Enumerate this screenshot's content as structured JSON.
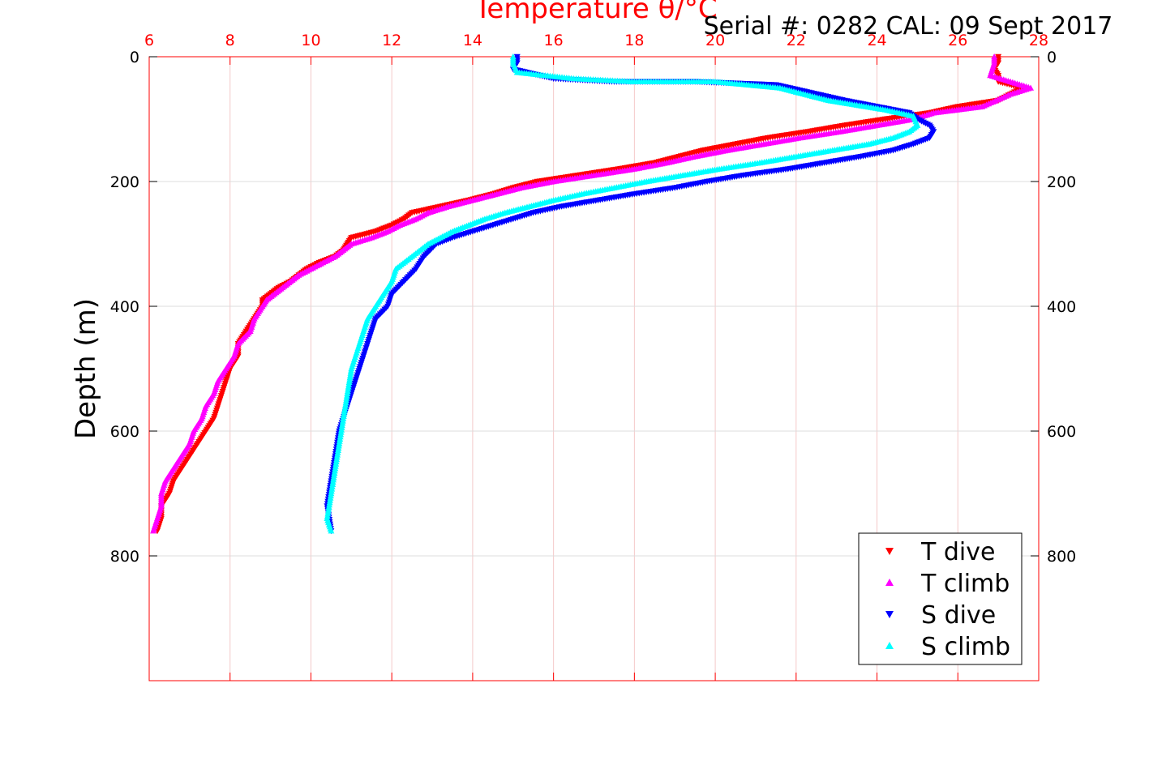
{
  "figure": {
    "title": "Temperature θ/°C",
    "annotation": "Serial #: 0282  CAL: 09 Sept 2017"
  },
  "chart_data": {
    "type": "scatter",
    "title": "Temperature θ/°C",
    "xlabel": "Temperature θ/°C",
    "ylabel": "Depth (m)",
    "xlim": [
      6,
      28
    ],
    "ylim": [
      1000,
      0
    ],
    "x_ticks": [
      "6",
      "8",
      "10",
      "12",
      "14",
      "16",
      "18",
      "20",
      "22",
      "24",
      "26",
      "28"
    ],
    "y_ticks": [
      "0",
      "200",
      "400",
      "600",
      "800"
    ],
    "y_reversed": true,
    "grid": true,
    "legend_position": "bottom-right",
    "series": [
      {
        "name": "T dive",
        "color": "#ff0000",
        "marker": "triangle-down",
        "x": [
          27.0,
          27.0,
          26.9,
          27.0,
          27.0,
          27.6,
          27.0,
          26.0,
          25.3,
          24.2,
          23.2,
          22.3,
          21.3,
          20.5,
          19.7,
          19.1,
          18.5,
          17.6,
          16.6,
          15.6,
          15.0,
          14.5,
          13.9,
          13.2,
          12.5,
          12.3,
          12.0,
          11.6,
          11.0,
          10.9,
          10.8,
          10.6,
          10.2,
          9.9,
          9.7,
          9.5,
          9.2,
          9.0,
          8.8,
          8.8,
          8.6,
          8.4,
          8.2,
          8.2,
          8.0,
          7.9,
          7.8,
          7.7,
          7.6,
          7.4,
          7.2,
          7.0,
          6.8,
          6.6,
          6.5,
          6.4,
          6.3,
          6.3,
          6.2
        ],
        "y": [
          0,
          10,
          20,
          30,
          40,
          50,
          70,
          80,
          90,
          100,
          110,
          120,
          130,
          140,
          150,
          160,
          170,
          180,
          190,
          200,
          210,
          220,
          230,
          240,
          250,
          260,
          270,
          280,
          290,
          300,
          310,
          320,
          330,
          340,
          350,
          360,
          370,
          380,
          390,
          400,
          420,
          440,
          460,
          480,
          500,
          520,
          540,
          560,
          580,
          600,
          620,
          640,
          660,
          680,
          700,
          710,
          720,
          740,
          760
        ]
      },
      {
        "name": "T climb",
        "color": "#ff00ff",
        "marker": "triangle-up",
        "x": [
          26.9,
          26.9,
          26.8,
          27.3,
          27.8,
          27.3,
          26.6,
          25.4,
          24.9,
          24.0,
          23.1,
          22.1,
          21.2,
          20.3,
          19.5,
          18.8,
          18.0,
          17.0,
          16.0,
          15.2,
          14.6,
          14.0,
          13.4,
          12.9,
          12.6,
          12.2,
          11.9,
          11.5,
          11.0,
          10.8,
          10.6,
          10.3,
          10.0,
          9.7,
          9.5,
          9.3,
          9.1,
          8.9,
          8.8,
          8.6,
          8.5,
          8.2,
          8.1,
          7.9,
          7.7,
          7.6,
          7.4,
          7.3,
          7.1,
          7.0,
          6.8,
          6.6,
          6.4,
          6.3,
          6.3,
          6.2,
          6.1
        ],
        "y": [
          0,
          10,
          30,
          40,
          50,
          60,
          80,
          90,
          100,
          110,
          120,
          130,
          140,
          150,
          160,
          170,
          180,
          190,
          200,
          210,
          220,
          230,
          240,
          250,
          260,
          270,
          280,
          290,
          300,
          310,
          320,
          330,
          340,
          350,
          360,
          370,
          380,
          390,
          400,
          420,
          440,
          460,
          480,
          500,
          520,
          540,
          560,
          580,
          600,
          620,
          640,
          660,
          680,
          700,
          720,
          740,
          760
        ]
      },
      {
        "name": "S dive",
        "color": "#0000ff",
        "marker": "triangle-down",
        "x": [
          15.1,
          15.1,
          15.0,
          16.0,
          17.5,
          19.5,
          21.5,
          23.2,
          24.8,
          25.0,
          25.3,
          25.4,
          25.3,
          24.9,
          24.4,
          23.6,
          22.7,
          21.8,
          20.7,
          19.8,
          19.0,
          18.0,
          17.1,
          16.2,
          15.5,
          15.0,
          14.5,
          14.0,
          13.5,
          13.1,
          12.8,
          12.6,
          12.3,
          12.0,
          11.9,
          11.6,
          11.5,
          11.4,
          11.3,
          11.2,
          11.1,
          11.0,
          10.9,
          10.8,
          10.7,
          10.6,
          10.5,
          10.4,
          10.5
        ],
        "y": [
          0,
          10,
          20,
          35,
          40,
          40,
          45,
          70,
          90,
          100,
          110,
          120,
          130,
          140,
          150,
          160,
          170,
          180,
          190,
          200,
          210,
          220,
          230,
          240,
          250,
          260,
          270,
          280,
          290,
          300,
          320,
          340,
          360,
          380,
          400,
          420,
          440,
          460,
          480,
          500,
          520,
          540,
          560,
          580,
          600,
          640,
          680,
          720,
          760
        ]
      },
      {
        "name": "S climb",
        "color": "#00ffff",
        "marker": "triangle-up",
        "x": [
          15.0,
          15.0,
          15.1,
          16.5,
          18.0,
          20.0,
          21.6,
          22.8,
          24.2,
          24.9,
          25.0,
          24.8,
          24.4,
          23.8,
          22.9,
          22.0,
          21.1,
          20.1,
          19.2,
          18.3,
          17.5,
          16.7,
          16.0,
          15.4,
          14.8,
          14.3,
          13.9,
          13.5,
          13.2,
          12.9,
          12.5,
          12.1,
          12.0,
          11.8,
          11.6,
          11.4,
          11.3,
          11.2,
          11.0,
          10.9,
          10.8,
          10.7,
          10.6,
          10.5,
          10.4,
          10.5
        ],
        "y": [
          0,
          10,
          25,
          35,
          40,
          40,
          50,
          70,
          85,
          95,
          110,
          120,
          130,
          140,
          150,
          160,
          170,
          180,
          190,
          200,
          210,
          220,
          230,
          240,
          250,
          260,
          270,
          280,
          290,
          300,
          320,
          340,
          360,
          380,
          400,
          420,
          440,
          460,
          500,
          540,
          580,
          620,
          660,
          700,
          740,
          760
        ]
      }
    ]
  }
}
